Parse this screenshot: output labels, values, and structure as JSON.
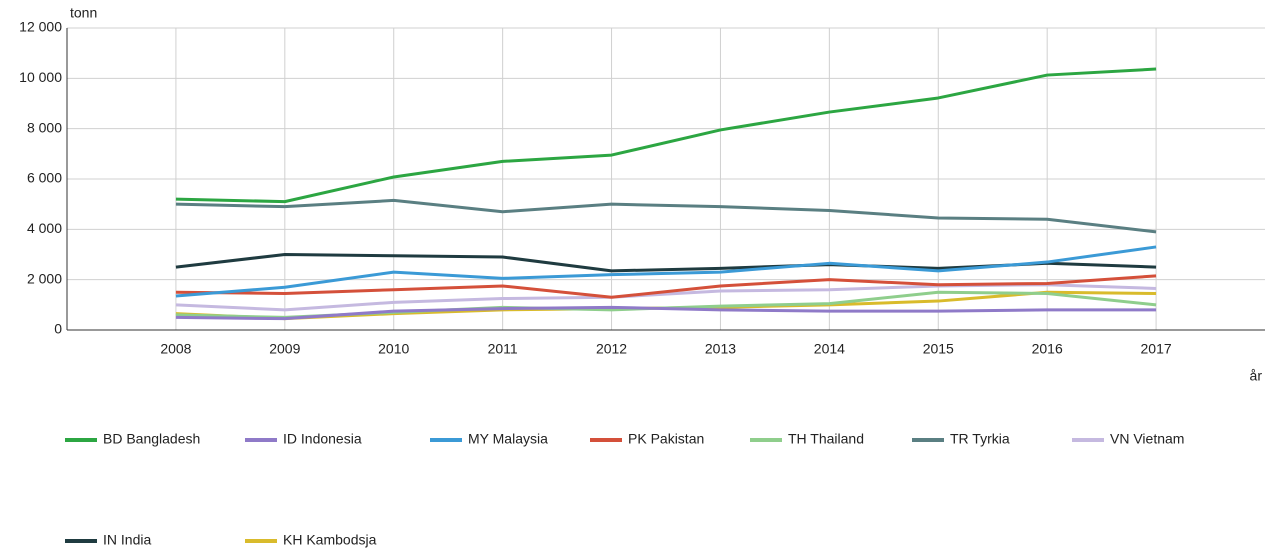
{
  "chart_data": {
    "type": "line",
    "y_label": "tonn",
    "x_label": "år",
    "x": [
      2008,
      2009,
      2010,
      2011,
      2012,
      2013,
      2014,
      2015,
      2016,
      2017
    ],
    "xlim": [
      2007,
      2018
    ],
    "xticks": [
      2008,
      2009,
      2010,
      2011,
      2012,
      2013,
      2014,
      2015,
      2016,
      2017
    ],
    "ylim": [
      0,
      12000
    ],
    "yticks": [
      {
        "value": 0,
        "label": "0"
      },
      {
        "value": 2000,
        "label": "2 000"
      },
      {
        "value": 4000,
        "label": "4 000"
      },
      {
        "value": 6000,
        "label": "6 000"
      },
      {
        "value": 8000,
        "label": "8 000"
      },
      {
        "value": 10000,
        "label": "10 000"
      },
      {
        "value": 12000,
        "label": "12 000"
      }
    ],
    "grid": true,
    "legend": "bottom",
    "series": [
      {
        "name": "BD Bangladesh",
        "color": "#2ca642",
        "values": [
          5200,
          5100,
          6080,
          6700,
          6950,
          7950,
          8660,
          9220,
          10130,
          10370
        ]
      },
      {
        "name": "ID Indonesia",
        "color": "#8f7ac8",
        "values": [
          500,
          450,
          750,
          850,
          900,
          800,
          750,
          750,
          800,
          800
        ]
      },
      {
        "name": "MY Malaysia",
        "color": "#3b9ad6",
        "values": [
          1350,
          1700,
          2300,
          2050,
          2200,
          2300,
          2650,
          2350,
          2700,
          3300
        ]
      },
      {
        "name": "PK Pakistan",
        "color": "#d4503a",
        "values": [
          1500,
          1450,
          1600,
          1750,
          1300,
          1750,
          2000,
          1800,
          1850,
          2150
        ]
      },
      {
        "name": "TH Thailand",
        "color": "#8fce8c",
        "values": [
          600,
          500,
          700,
          900,
          800,
          950,
          1050,
          1500,
          1450,
          1000
        ]
      },
      {
        "name": "TR Tyrkia",
        "color": "#5a7f82",
        "values": [
          5000,
          4900,
          5150,
          4700,
          5000,
          4900,
          4750,
          4450,
          4400,
          3900
        ]
      },
      {
        "name": "VN Vietnam",
        "color": "#c5b9e0",
        "values": [
          1000,
          800,
          1100,
          1250,
          1300,
          1550,
          1600,
          1750,
          1800,
          1650
        ]
      },
      {
        "name": "IN India",
        "color": "#1f3b40",
        "values": [
          2500,
          3000,
          2950,
          2900,
          2350,
          2450,
          2600,
          2450,
          2650,
          2500
        ]
      },
      {
        "name": "KH Kambodsja",
        "color": "#d9bb2c",
        "values": [
          650,
          450,
          650,
          800,
          850,
          900,
          1000,
          1150,
          1500,
          1450
        ]
      }
    ]
  }
}
